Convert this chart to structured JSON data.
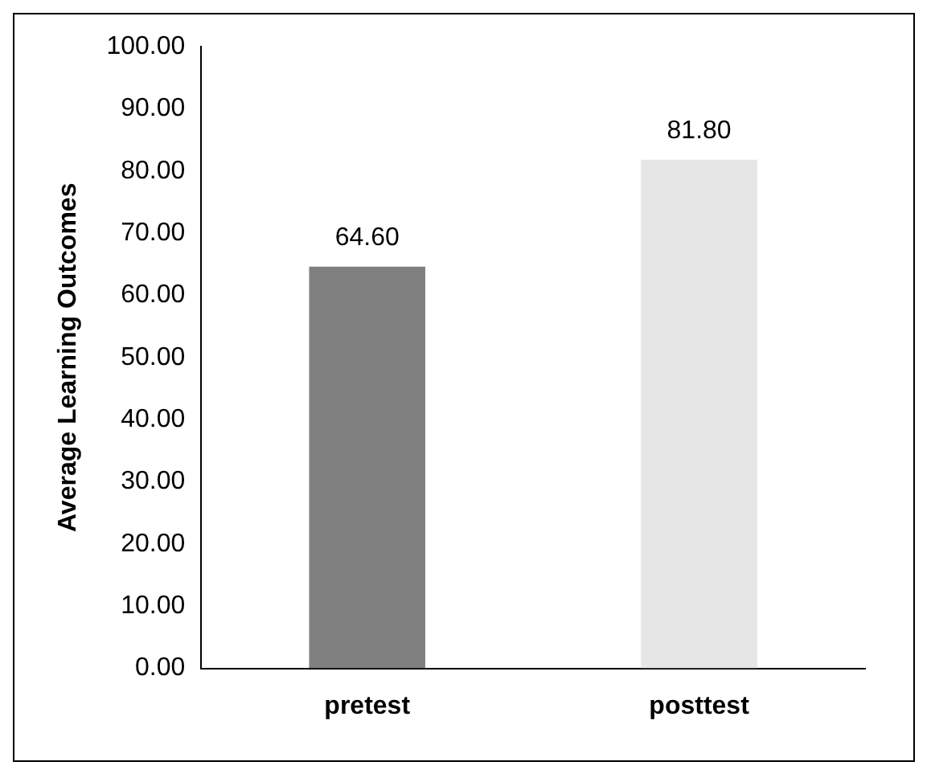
{
  "chart_data": {
    "type": "bar",
    "ylabel": "Average Learning Outcomes",
    "categories": [
      "pretest",
      "posttest"
    ],
    "values": [
      64.6,
      81.8
    ],
    "colors": [
      "#808080",
      "#e6e6e6"
    ],
    "ylim": [
      0,
      100
    ],
    "yticks": [
      {
        "value": 0,
        "label": "0.00"
      },
      {
        "value": 10,
        "label": "10.00"
      },
      {
        "value": 20,
        "label": "20.00"
      },
      {
        "value": 30,
        "label": "30.00"
      },
      {
        "value": 40,
        "label": "40.00"
      },
      {
        "value": 50,
        "label": "50.00"
      },
      {
        "value": 60,
        "label": "60.00"
      },
      {
        "value": 70,
        "label": "70.00"
      },
      {
        "value": 80,
        "label": "80.00"
      },
      {
        "value": 90,
        "label": "90.00"
      },
      {
        "value": 100,
        "label": "100.00"
      }
    ],
    "value_labels": [
      "64.60",
      "81.80"
    ],
    "grid": false,
    "legend": false
  }
}
